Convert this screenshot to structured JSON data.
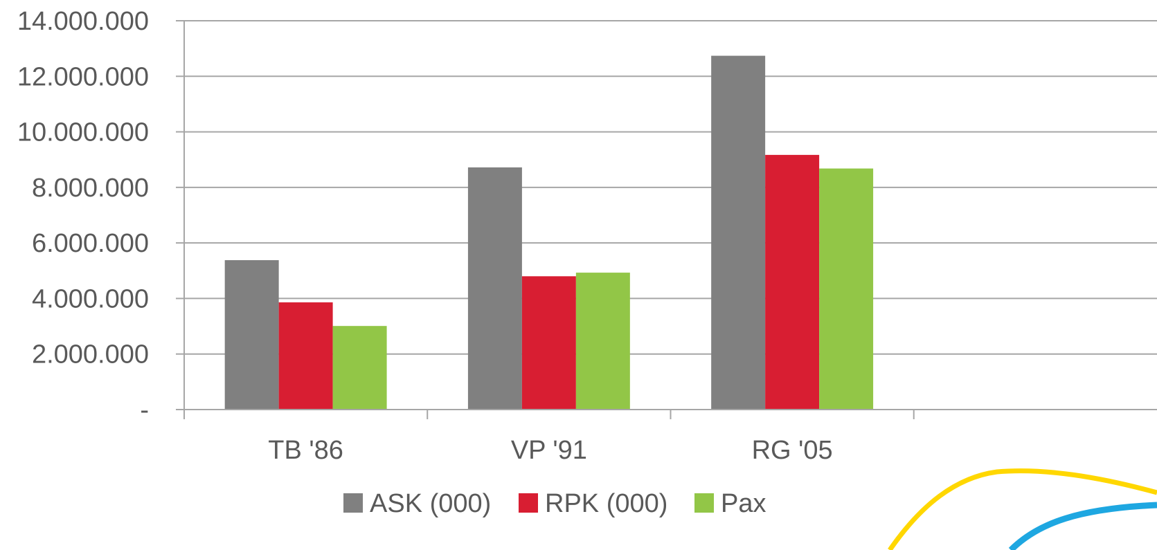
{
  "chart_data": {
    "type": "bar",
    "categories": [
      "TB '86",
      "VP '91",
      "RG '05",
      ""
    ],
    "ytick_labels": [
      "-",
      "2.000.000",
      "4.000.000",
      "6.000.000",
      "8.000.000",
      "10.000.000",
      "12.000.000",
      "14.000.000"
    ],
    "yticks": [
      0,
      2000000,
      4000000,
      6000000,
      8000000,
      10000000,
      12000000,
      14000000
    ],
    "ylim": [
      0,
      14000000
    ],
    "grid": true,
    "legend_position": "bottom",
    "series": [
      {
        "name": "ASK (000)",
        "color": "#808080",
        "values": [
          5380000,
          8720000,
          12740000,
          null
        ]
      },
      {
        "name": "RPK (000)",
        "color": "#D81E32",
        "values": [
          3860000,
          4800000,
          9170000,
          null
        ]
      },
      {
        "name": "Pax",
        "color": "#92C647",
        "values": [
          3010000,
          4930000,
          8680000,
          null
        ]
      }
    ]
  },
  "decoration": {
    "swoosh_colors": [
      "#FFD700",
      "#1EA7E1"
    ]
  }
}
